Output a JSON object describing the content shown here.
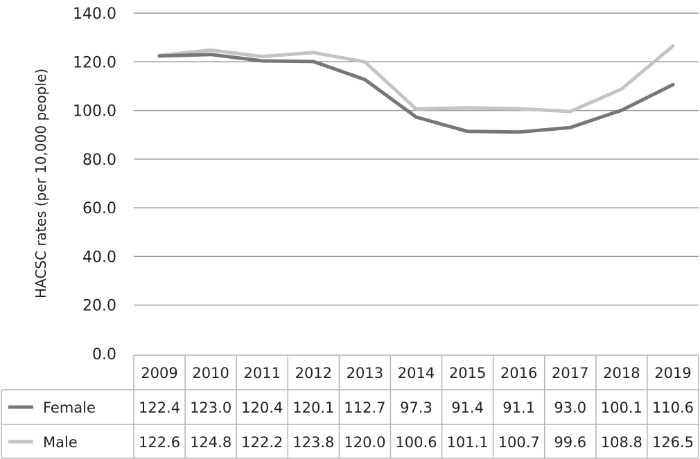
{
  "chart_data": {
    "type": "line",
    "title": "",
    "xlabel": "",
    "ylabel": "HACSC rates (per 10,000 people)",
    "ylim": [
      0,
      140
    ],
    "y_ticks": [
      "0.0",
      "20.0",
      "40.0",
      "60.0",
      "80.0",
      "100.0",
      "120.0",
      "140.0"
    ],
    "y_tick_values": [
      0,
      20,
      40,
      60,
      80,
      100,
      120,
      140
    ],
    "categories": [
      "2009",
      "2010",
      "2011",
      "2012",
      "2013",
      "2014",
      "2015",
      "2016",
      "2017",
      "2018",
      "2019"
    ],
    "grid": true,
    "legend": "data-table",
    "series": [
      {
        "name": "Female",
        "color": "#77777a",
        "values": [
          122.4,
          123.0,
          120.4,
          120.1,
          112.7,
          97.3,
          91.4,
          91.1,
          93.0,
          100.1,
          110.6
        ],
        "labels": [
          "122.4",
          "123.0",
          "120.4",
          "120.1",
          "112.7",
          "97.3",
          "91.4",
          "91.1",
          "93.0",
          "100.1",
          "110.6"
        ]
      },
      {
        "name": "Male",
        "color": "#c4c4c4",
        "values": [
          122.6,
          124.8,
          122.2,
          123.8,
          120.0,
          100.6,
          101.1,
          100.7,
          99.6,
          108.8,
          126.5
        ],
        "labels": [
          "122.6",
          "124.8",
          "122.2",
          "123.8",
          "120.0",
          "100.6",
          "101.1",
          "100.7",
          "99.6",
          "108.8",
          "126.5"
        ]
      }
    ]
  }
}
